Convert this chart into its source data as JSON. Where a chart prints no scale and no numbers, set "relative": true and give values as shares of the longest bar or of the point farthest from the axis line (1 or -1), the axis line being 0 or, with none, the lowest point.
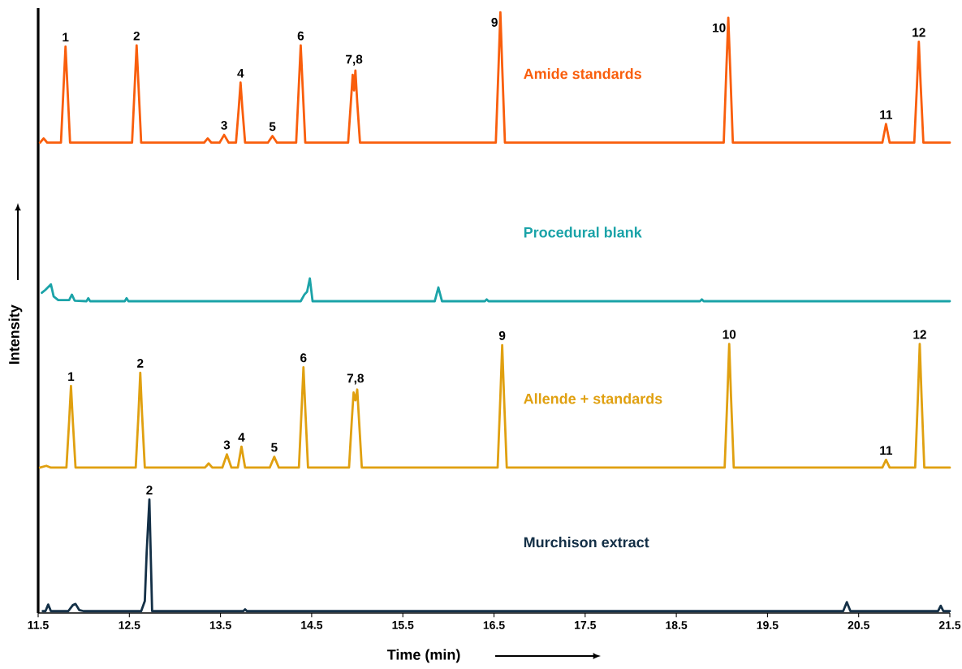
{
  "chart_data": {
    "type": "line",
    "relative": true,
    "xlabel": "Time (min)",
    "ylabel": "Intensity",
    "xlim": [
      11.5,
      21.5
    ],
    "xticks": [
      11.5,
      12.5,
      13.5,
      14.5,
      15.5,
      16.5,
      17.5,
      18.5,
      19.5,
      20.5,
      21.5
    ],
    "grid": false,
    "legend": false,
    "marker": "none",
    "line_style": "solid",
    "series": [
      {
        "name": "Amide standards",
        "color": "#f95e0c",
        "x": [
          11.52,
          11.56,
          11.6,
          11.75,
          11.78,
          11.8,
          11.82,
          11.85,
          12.53,
          12.56,
          12.58,
          12.6,
          12.63,
          13.32,
          13.36,
          13.4,
          13.49,
          13.54,
          13.59,
          13.67,
          13.7,
          13.72,
          13.74,
          13.77,
          14.02,
          14.07,
          14.12,
          14.33,
          14.36,
          14.38,
          14.4,
          14.43,
          14.9,
          14.93,
          14.95,
          14.965,
          14.98,
          15.0,
          15.03,
          16.52,
          16.55,
          16.57,
          16.59,
          16.62,
          19.02,
          19.05,
          19.07,
          19.09,
          19.12,
          20.76,
          20.8,
          20.84,
          21.11,
          21.14,
          21.16,
          21.18,
          21.21,
          21.5
        ],
        "values": [
          0.783,
          0.79,
          0.783,
          0.783,
          0.88,
          0.943,
          0.88,
          0.783,
          0.783,
          0.88,
          0.945,
          0.88,
          0.783,
          0.783,
          0.79,
          0.783,
          0.783,
          0.796,
          0.783,
          0.783,
          0.84,
          0.883,
          0.84,
          0.783,
          0.783,
          0.794,
          0.783,
          0.783,
          0.88,
          0.945,
          0.88,
          0.783,
          0.783,
          0.85,
          0.896,
          0.87,
          0.903,
          0.85,
          0.783,
          0.783,
          0.91,
          1.0,
          0.91,
          0.783,
          0.783,
          0.91,
          0.991,
          0.91,
          0.783,
          0.783,
          0.814,
          0.783,
          0.783,
          0.88,
          0.951,
          0.88,
          0.783,
          0.783
        ]
      },
      {
        "name": "Procedural blank",
        "color": "#1ba3a8",
        "x": [
          11.54,
          11.58,
          11.64,
          11.67,
          11.72,
          11.84,
          11.87,
          11.9,
          12.03,
          12.05,
          12.07,
          12.45,
          12.47,
          12.49,
          14.38,
          14.42,
          14.45,
          14.48,
          14.51,
          15.85,
          15.89,
          15.93,
          16.4,
          16.42,
          16.44,
          18.76,
          18.78,
          18.8,
          21.5
        ],
        "values": [
          0.533,
          0.538,
          0.547,
          0.527,
          0.521,
          0.521,
          0.53,
          0.52,
          0.519,
          0.524,
          0.519,
          0.519,
          0.524,
          0.519,
          0.519,
          0.53,
          0.535,
          0.557,
          0.519,
          0.519,
          0.542,
          0.519,
          0.519,
          0.522,
          0.519,
          0.519,
          0.522,
          0.519,
          0.519
        ]
      },
      {
        "name": "Allende + standards",
        "color": "#e0a010",
        "x": [
          11.52,
          11.59,
          11.64,
          11.81,
          11.84,
          11.86,
          11.88,
          11.91,
          12.57,
          12.6,
          12.62,
          12.64,
          12.67,
          13.33,
          13.37,
          13.41,
          13.52,
          13.57,
          13.62,
          13.69,
          13.73,
          13.77,
          14.04,
          14.09,
          14.14,
          14.36,
          14.39,
          14.41,
          14.43,
          14.46,
          14.91,
          14.94,
          14.96,
          14.98,
          15.0,
          15.02,
          15.05,
          16.54,
          16.57,
          16.59,
          16.61,
          16.64,
          19.03,
          19.06,
          19.08,
          19.1,
          19.13,
          20.76,
          20.8,
          20.84,
          21.12,
          21.15,
          21.17,
          21.19,
          21.22,
          21.5
        ],
        "values": [
          0.242,
          0.245,
          0.242,
          0.242,
          0.32,
          0.378,
          0.32,
          0.242,
          0.242,
          0.33,
          0.4,
          0.33,
          0.242,
          0.242,
          0.249,
          0.242,
          0.242,
          0.264,
          0.242,
          0.242,
          0.277,
          0.242,
          0.242,
          0.26,
          0.242,
          0.242,
          0.34,
          0.409,
          0.34,
          0.242,
          0.242,
          0.32,
          0.367,
          0.354,
          0.372,
          0.32,
          0.242,
          0.242,
          0.36,
          0.446,
          0.36,
          0.242,
          0.242,
          0.36,
          0.448,
          0.36,
          0.242,
          0.242,
          0.255,
          0.242,
          0.242,
          0.36,
          0.448,
          0.36,
          0.242,
          0.242
        ]
      },
      {
        "name": "Murchison extract",
        "color": "#143047",
        "x": [
          11.55,
          11.58,
          11.61,
          11.64,
          11.83,
          11.88,
          11.91,
          11.95,
          12.0,
          12.63,
          12.67,
          12.69,
          12.72,
          12.75,
          13.75,
          13.77,
          13.79,
          20.33,
          20.37,
          20.41,
          21.37,
          21.4,
          21.43,
          21.5
        ],
        "values": [
          0.003,
          0.003,
          0.014,
          0.003,
          0.003,
          0.013,
          0.015,
          0.005,
          0.003,
          0.003,
          0.02,
          0.1,
          0.189,
          0.003,
          0.003,
          0.006,
          0.003,
          0.003,
          0.018,
          0.003,
          0.003,
          0.012,
          0.003,
          0.003
        ]
      }
    ],
    "annotations": [
      {
        "text": "1",
        "x": 11.8,
        "y": 0.943
      },
      {
        "text": "2",
        "x": 12.58,
        "y": 0.945
      },
      {
        "text": "3",
        "x": 13.54,
        "y": 0.796
      },
      {
        "text": "4",
        "x": 13.72,
        "y": 0.883
      },
      {
        "text": "5",
        "x": 14.07,
        "y": 0.794
      },
      {
        "text": "6",
        "x": 14.38,
        "y": 0.945
      },
      {
        "text": "7,8",
        "x": 14.965,
        "y": 0.903
      },
      {
        "text": "9",
        "x": 16.57,
        "y": 1.0
      },
      {
        "text": "10",
        "x": 19.07,
        "y": 0.991
      },
      {
        "text": "11",
        "x": 20.8,
        "y": 0.814
      },
      {
        "text": "12",
        "x": 21.16,
        "y": 0.951
      },
      {
        "text": "1",
        "x": 11.86,
        "y": 0.378
      },
      {
        "text": "2",
        "x": 12.62,
        "y": 0.4
      },
      {
        "text": "3",
        "x": 13.57,
        "y": 0.264
      },
      {
        "text": "4",
        "x": 13.73,
        "y": 0.277
      },
      {
        "text": "5",
        "x": 14.09,
        "y": 0.26
      },
      {
        "text": "6",
        "x": 14.41,
        "y": 0.409
      },
      {
        "text": "7,8",
        "x": 14.98,
        "y": 0.372
      },
      {
        "text": "9",
        "x": 16.59,
        "y": 0.446
      },
      {
        "text": "10",
        "x": 19.08,
        "y": 0.448
      },
      {
        "text": "11",
        "x": 20.8,
        "y": 0.255
      },
      {
        "text": "12",
        "x": 21.17,
        "y": 0.448
      },
      {
        "text": "2",
        "x": 12.72,
        "y": 0.189
      }
    ]
  }
}
